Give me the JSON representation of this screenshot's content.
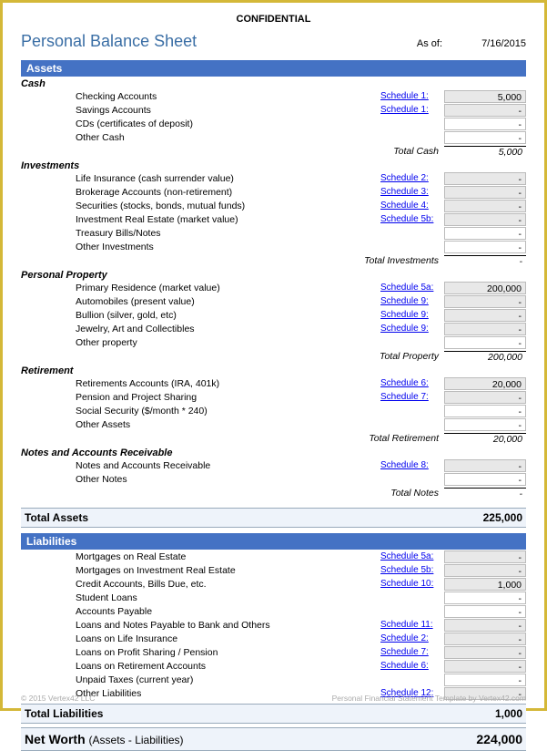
{
  "confidential": "CONFIDENTIAL",
  "title": "Personal Balance Sheet",
  "asof_label": "As of:",
  "asof_date": "7/16/2015",
  "assets_header": "Assets",
  "cash": {
    "header": "Cash",
    "rows": [
      {
        "label": "Checking Accounts",
        "schedule": "Schedule 1:",
        "value": "5,000"
      },
      {
        "label": "Savings Accounts",
        "schedule": "Schedule 1:",
        "value": "-"
      },
      {
        "label": "CDs (certificates of deposit)",
        "schedule": "",
        "value": "-"
      },
      {
        "label": "Other Cash",
        "schedule": "",
        "value": "-"
      }
    ],
    "subtotal_label": "Total Cash",
    "subtotal_value": "5,000"
  },
  "investments": {
    "header": "Investments",
    "rows": [
      {
        "label": "Life Insurance (cash surrender value)",
        "schedule": "Schedule 2:",
        "value": "-"
      },
      {
        "label": "Brokerage Accounts (non-retirement)",
        "schedule": "Schedule 3:",
        "value": "-"
      },
      {
        "label": "Securities (stocks, bonds, mutual funds)",
        "schedule": "Schedule 4:",
        "value": "-"
      },
      {
        "label": "Investment Real Estate (market value)",
        "schedule": "Schedule 5b:",
        "value": "-"
      },
      {
        "label": "Treasury Bills/Notes",
        "schedule": "",
        "value": "-"
      },
      {
        "label": "Other Investments",
        "schedule": "",
        "value": "-"
      }
    ],
    "subtotal_label": "Total Investments",
    "subtotal_value": "-"
  },
  "property": {
    "header": "Personal Property",
    "rows": [
      {
        "label": "Primary Residence (market value)",
        "schedule": "Schedule 5a:",
        "value": "200,000"
      },
      {
        "label": "Automobiles (present value)",
        "schedule": "Schedule 9:",
        "value": "-"
      },
      {
        "label": "Bullion (silver, gold, etc)",
        "schedule": "Schedule 9:",
        "value": "-"
      },
      {
        "label": "Jewelry, Art and Collectibles",
        "schedule": "Schedule 9:",
        "value": "-"
      },
      {
        "label": "Other property",
        "schedule": "",
        "value": "-"
      }
    ],
    "subtotal_label": "Total Property",
    "subtotal_value": "200,000"
  },
  "retirement": {
    "header": "Retirement",
    "rows": [
      {
        "label": "Retirements Accounts (IRA, 401k)",
        "schedule": "Schedule 6:",
        "value": "20,000"
      },
      {
        "label": "Pension and Project Sharing",
        "schedule": "Schedule 7:",
        "value": "-"
      },
      {
        "label": "Social Security ($/month * 240)",
        "schedule": "",
        "value": "-"
      },
      {
        "label": "Other Assets",
        "schedule": "",
        "value": "-"
      }
    ],
    "subtotal_label": "Total Retirement",
    "subtotal_value": "20,000"
  },
  "notes": {
    "header": "Notes and Accounts Receivable",
    "rows": [
      {
        "label": "Notes and Accounts Receivable",
        "schedule": "Schedule 8:",
        "value": "-"
      },
      {
        "label": "Other Notes",
        "schedule": "",
        "value": "-"
      }
    ],
    "subtotal_label": "Total Notes",
    "subtotal_value": "-"
  },
  "total_assets_label": "Total Assets",
  "total_assets_value": "225,000",
  "liabilities_header": "Liabilities",
  "liabilities": {
    "rows": [
      {
        "label": "Mortgages on Real Estate",
        "schedule": "Schedule 5a:",
        "value": "-"
      },
      {
        "label": "Mortgages on Investment Real Estate",
        "schedule": "Schedule 5b:",
        "value": "-"
      },
      {
        "label": "Credit Accounts, Bills Due, etc.",
        "schedule": "Schedule 10:",
        "value": "1,000"
      },
      {
        "label": "Student Loans",
        "schedule": "",
        "value": "-"
      },
      {
        "label": "Accounts Payable",
        "schedule": "",
        "value": "-"
      },
      {
        "label": "Loans and Notes Payable to Bank and Others",
        "schedule": "Schedule 11:",
        "value": "-"
      },
      {
        "label": "Loans on Life Insurance",
        "schedule": "Schedule 2:",
        "value": "-"
      },
      {
        "label": "Loans on Profit Sharing / Pension",
        "schedule": "Schedule 7:",
        "value": "-"
      },
      {
        "label": "Loans on Retirement Accounts",
        "schedule": "Schedule 6:",
        "value": "-"
      },
      {
        "label": "Unpaid Taxes (current year)",
        "schedule": "",
        "value": "-"
      },
      {
        "label": "Other Liabilities",
        "schedule": "Schedule 12:",
        "value": "-"
      }
    ]
  },
  "total_liabilities_label": "Total Liabilities",
  "total_liabilities_value": "1,000",
  "networth_label": "Net Worth",
  "networth_sub": "(Assets - Liabilities)",
  "networth_value": "224,000",
  "footer_left": "© 2015 Vertex42 LLC",
  "footer_right": "Personal Financial Statement Template by Vertex42.com"
}
